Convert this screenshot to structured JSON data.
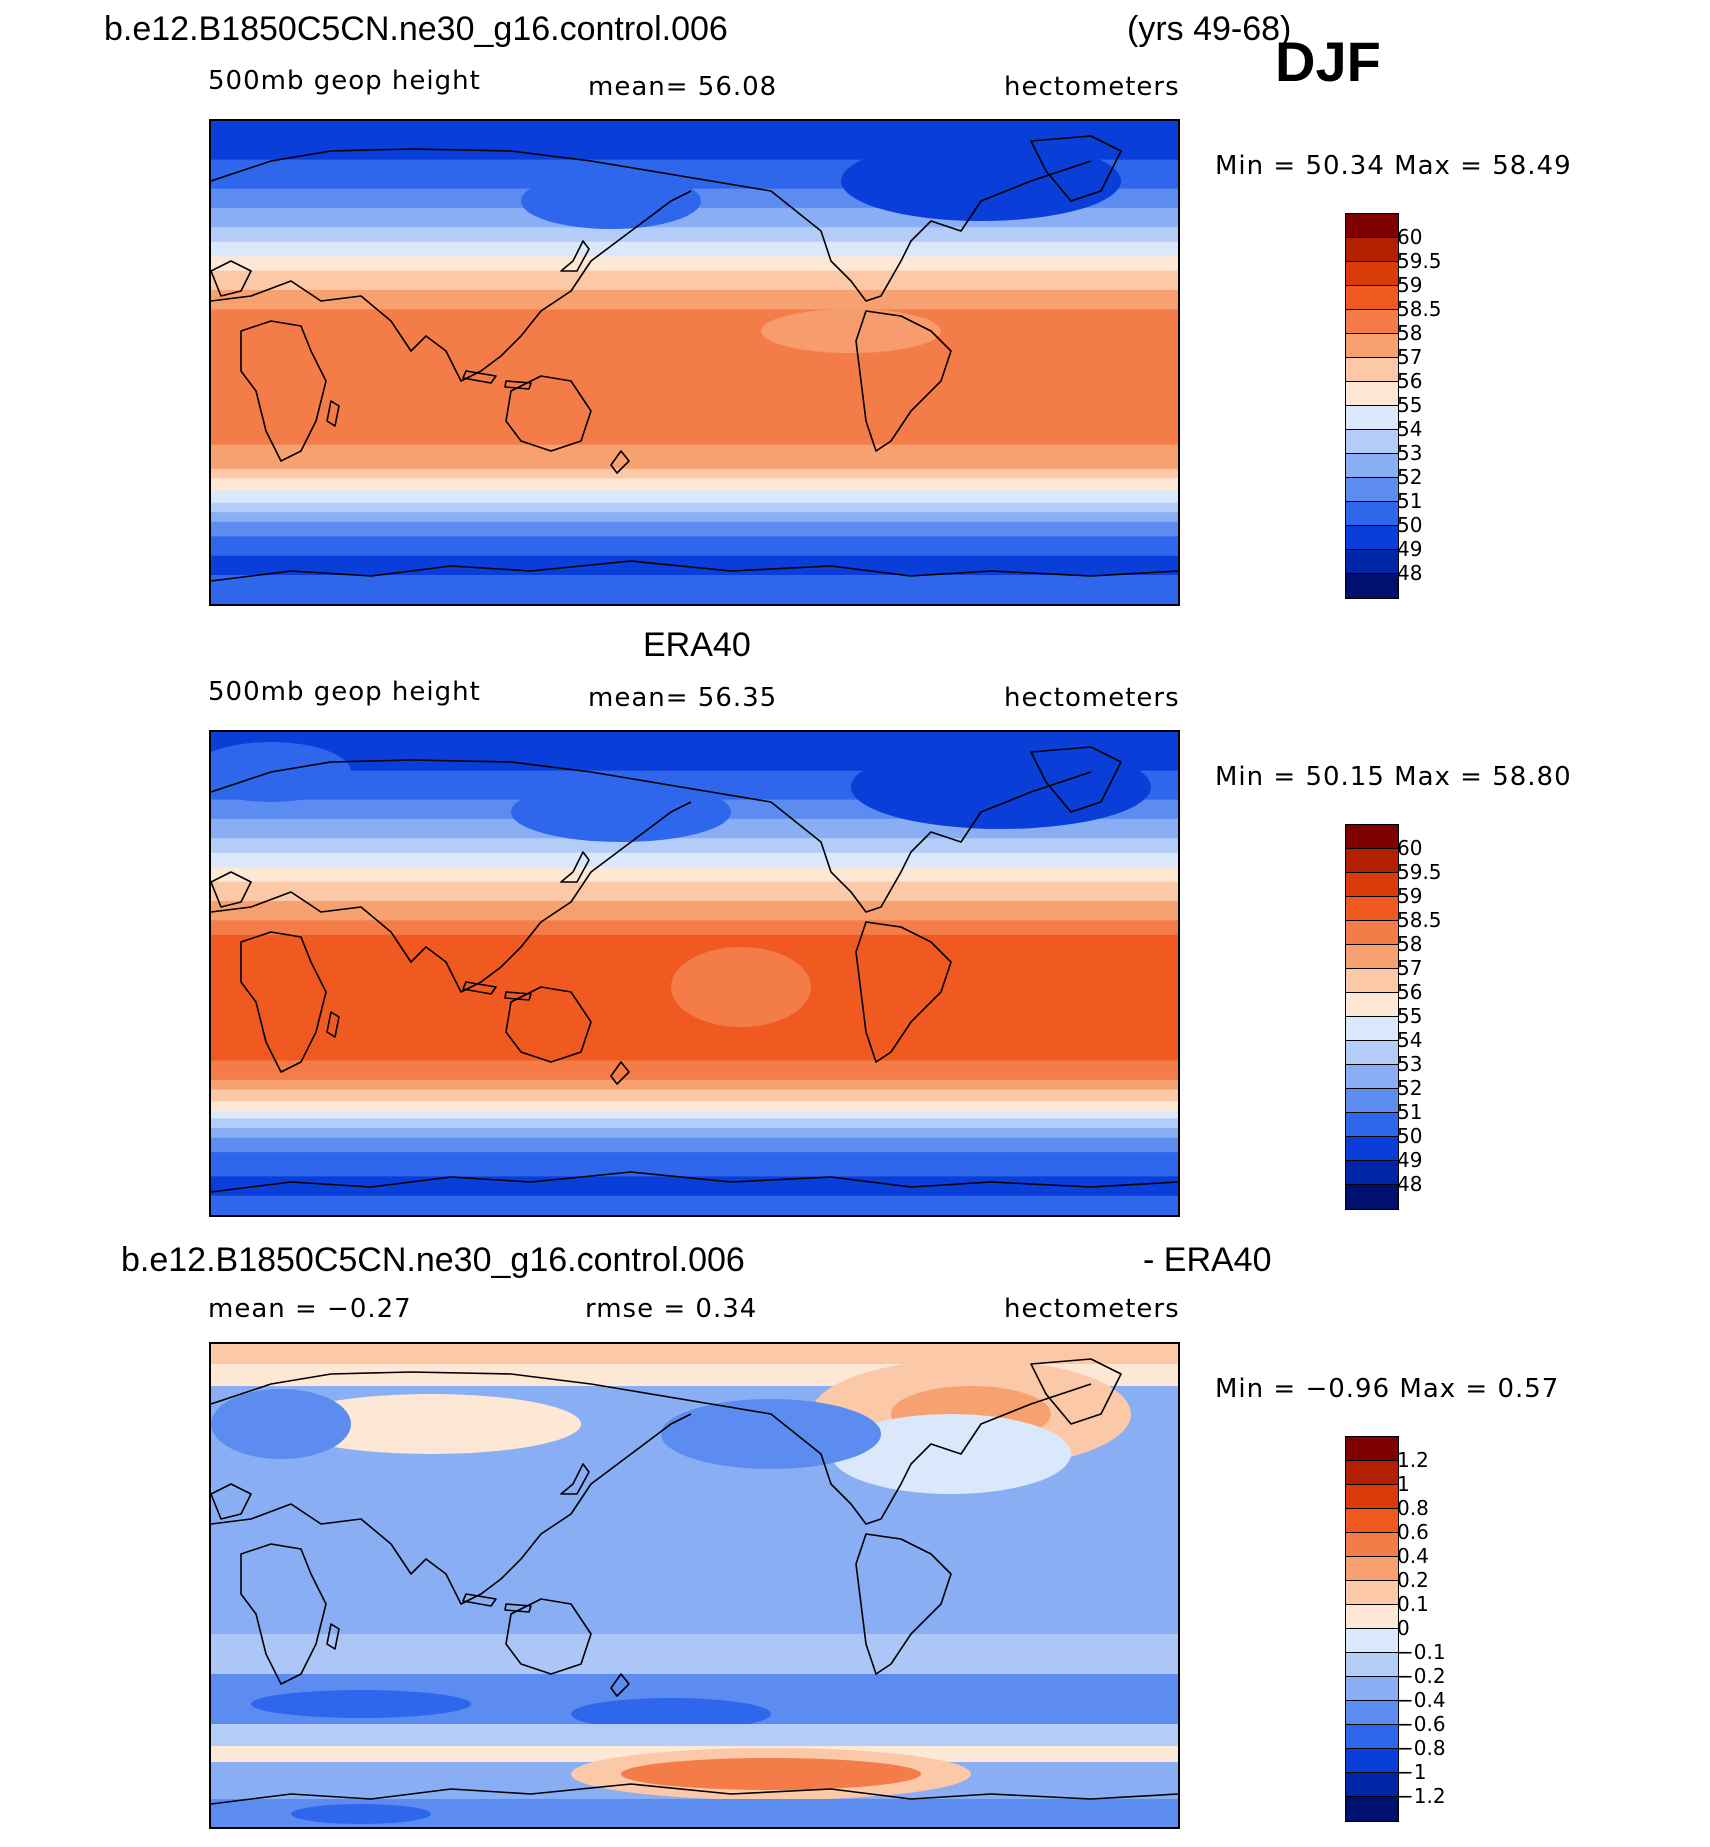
{
  "season": "DJF",
  "panels": [
    {
      "id": "model",
      "header_left": "b.e12.B1850C5CN.ne30_g16.control.006",
      "header_right": "(yrs 49-68)",
      "sub_left": "500mb  geop  height",
      "sub_mid": "mean=   56.08",
      "sub_right": "hectometers",
      "minmax": "Min =   50.34  Max =   58.49",
      "field_kind": "abs_model",
      "colorbar": {
        "labels": [
          "60",
          "59.5",
          "59",
          "58.5",
          "58",
          "57",
          "56",
          "55",
          "54",
          "53",
          "52",
          "51",
          "50",
          "49",
          "48"
        ],
        "colors": [
          "#7f0000",
          "#b22000",
          "#d83a08",
          "#f05a20",
          "#f47c48",
          "#f7a070",
          "#fbc8a8",
          "#fde8d6",
          "#dbe8fb",
          "#b4cdf8",
          "#8aaef4",
          "#5d8cf0",
          "#2e66ec",
          "#0a3ed8",
          "#0026a8",
          "#00106e"
        ]
      }
    },
    {
      "id": "obs",
      "header_center": "ERA40",
      "sub_left": "500mb  geop  height",
      "sub_mid": "mean=   56.35",
      "sub_right": "hectometers",
      "minmax": "Min =   50.15  Max =   58.80",
      "field_kind": "abs_obs",
      "colorbar": {
        "labels": [
          "60",
          "59.5",
          "59",
          "58.5",
          "58",
          "57",
          "56",
          "55",
          "54",
          "53",
          "52",
          "51",
          "50",
          "49",
          "48"
        ],
        "colors": [
          "#7f0000",
          "#b22000",
          "#d83a08",
          "#f05a20",
          "#f47c48",
          "#f7a070",
          "#fbc8a8",
          "#fde8d6",
          "#dbe8fb",
          "#b4cdf8",
          "#8aaef4",
          "#5d8cf0",
          "#2e66ec",
          "#0a3ed8",
          "#0026a8",
          "#00106e"
        ]
      }
    },
    {
      "id": "diff",
      "header_left": "b.e12.B1850C5CN.ne30_g16.control.006",
      "header_right": "- ERA40",
      "sub_left": "mean =   −0.27",
      "sub_mid": "rmse =     0.34",
      "sub_right": "hectometers",
      "minmax": "Min =   −0.96  Max =     0.57",
      "field_kind": "diff",
      "colorbar": {
        "labels": [
          "1.2",
          "1",
          "0.8",
          "0.6",
          "0.4",
          "0.2",
          "0.1",
          "0",
          "−0.1",
          "−0.2",
          "−0.4",
          "−0.6",
          "−0.8",
          "−1",
          "−1.2"
        ],
        "colors": [
          "#7f0000",
          "#b22000",
          "#d83a08",
          "#f05a20",
          "#f47c48",
          "#f7a070",
          "#fbc8a8",
          "#fde8d6",
          "#dbe8fb",
          "#b4cdf8",
          "#8aaef4",
          "#5d8cf0",
          "#2e66ec",
          "#0a3ed8",
          "#0026a8",
          "#00106e"
        ]
      }
    }
  ]
}
